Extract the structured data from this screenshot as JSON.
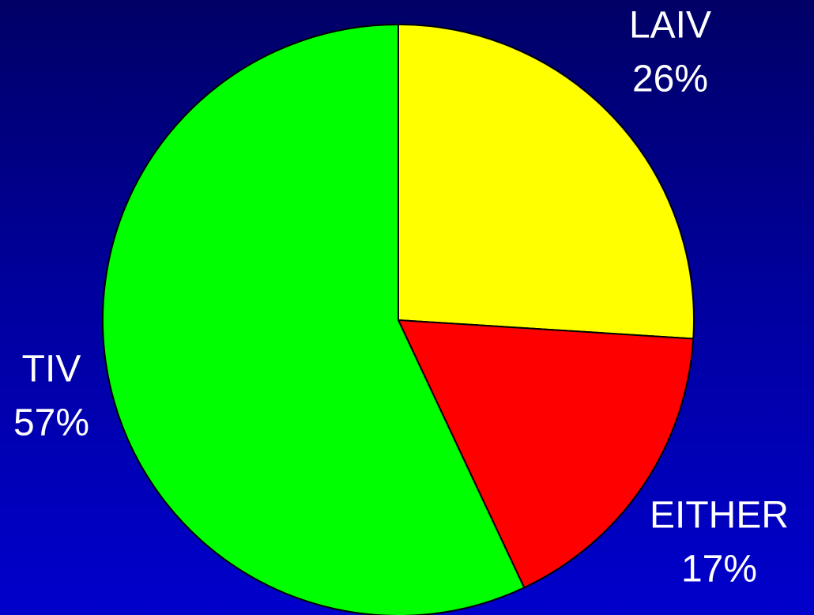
{
  "chart_data": {
    "type": "pie",
    "categories": [
      "LAIV",
      "EITHER",
      "TIV"
    ],
    "values": [
      26,
      17,
      57
    ],
    "value_labels": [
      "26%",
      "17%",
      "57%"
    ],
    "colors": [
      "#ffff00",
      "#ff0000",
      "#00ff00"
    ]
  }
}
